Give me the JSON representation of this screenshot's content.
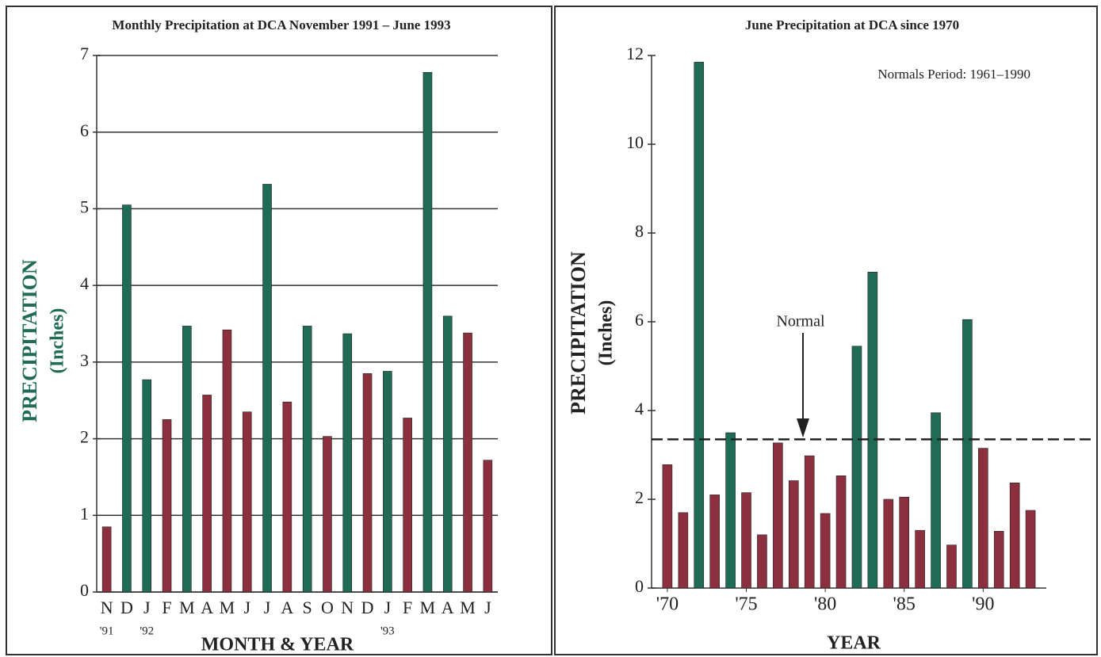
{
  "chart_data": [
    {
      "type": "bar",
      "title": "Monthly Precipitation at DCA November 1991 – June 1993",
      "y_label": "PRECIPITATION",
      "y_sublabel": "(Inches)",
      "x_label": "MONTH & YEAR",
      "categories": [
        "N",
        "D",
        "J",
        "F",
        "M",
        "A",
        "M",
        "J",
        "J",
        "A",
        "S",
        "O",
        "N",
        "D",
        "J",
        "F",
        "M",
        "A",
        "M",
        "J"
      ],
      "year_labels": [
        "'91",
        null,
        "'92",
        null,
        null,
        null,
        null,
        null,
        null,
        null,
        null,
        null,
        null,
        null,
        "'93",
        null,
        null,
        null,
        null,
        null
      ],
      "values": [
        0.85,
        5.05,
        2.77,
        2.25,
        3.47,
        2.57,
        3.42,
        2.35,
        5.32,
        2.48,
        3.47,
        2.03,
        3.37,
        2.85,
        2.88,
        2.27,
        6.78,
        3.6,
        3.38,
        1.72
      ],
      "colors": [
        "#8c2f3e",
        "#1f6b55",
        "#1f6b55",
        "#8c2f3e",
        "#1f6b55",
        "#8c2f3e",
        "#8c2f3e",
        "#8c2f3e",
        "#1f6b55",
        "#8c2f3e",
        "#1f6b55",
        "#8c2f3e",
        "#1f6b55",
        "#8c2f3e",
        "#1f6b55",
        "#8c2f3e",
        "#1f6b55",
        "#1f6b55",
        "#8c2f3e",
        "#8c2f3e"
      ],
      "ylim": [
        0,
        7
      ],
      "yticks": [
        0,
        1,
        2,
        3,
        4,
        5,
        6,
        7
      ],
      "grid": true
    },
    {
      "type": "bar",
      "title": "June Precipitation at DCA since 1970",
      "y_label": "PRECIPITATION",
      "y_sublabel": "(Inches)",
      "x_label": "YEAR",
      "annotations": [
        "Normal",
        "Normals Period: 1961–1990"
      ],
      "normal": 3.35,
      "x": [
        1970,
        1971,
        1972,
        1973,
        1974,
        1975,
        1976,
        1977,
        1978,
        1979,
        1980,
        1981,
        1982,
        1983,
        1984,
        1985,
        1986,
        1987,
        1988,
        1989,
        1990,
        1991,
        1992,
        1993
      ],
      "values": [
        2.78,
        1.7,
        11.85,
        2.1,
        3.5,
        2.15,
        1.2,
        3.27,
        2.42,
        2.98,
        1.68,
        2.53,
        5.45,
        7.12,
        2.0,
        2.05,
        1.3,
        3.95,
        0.97,
        6.05,
        3.15,
        1.28,
        2.37,
        1.75
      ],
      "colors": [
        "#8c2f3e",
        "#8c2f3e",
        "#1f6b55",
        "#8c2f3e",
        "#1f6b55",
        "#8c2f3e",
        "#8c2f3e",
        "#8c2f3e",
        "#8c2f3e",
        "#8c2f3e",
        "#8c2f3e",
        "#8c2f3e",
        "#1f6b55",
        "#1f6b55",
        "#8c2f3e",
        "#8c2f3e",
        "#8c2f3e",
        "#1f6b55",
        "#8c2f3e",
        "#1f6b55",
        "#8c2f3e",
        "#8c2f3e",
        "#8c2f3e",
        "#8c2f3e"
      ],
      "xlim": [
        1969,
        1994
      ],
      "xticks": [
        {
          "value": 1970,
          "label": "'70"
        },
        {
          "value": 1975,
          "label": "'75"
        },
        {
          "value": 1980,
          "label": "'80"
        },
        {
          "value": 1985,
          "label": "'85"
        },
        {
          "value": 1990,
          "label": "'90"
        }
      ],
      "ylim": [
        0,
        12
      ],
      "yticks": [
        0,
        2,
        4,
        6,
        8,
        10,
        12
      ],
      "grid": false
    }
  ]
}
